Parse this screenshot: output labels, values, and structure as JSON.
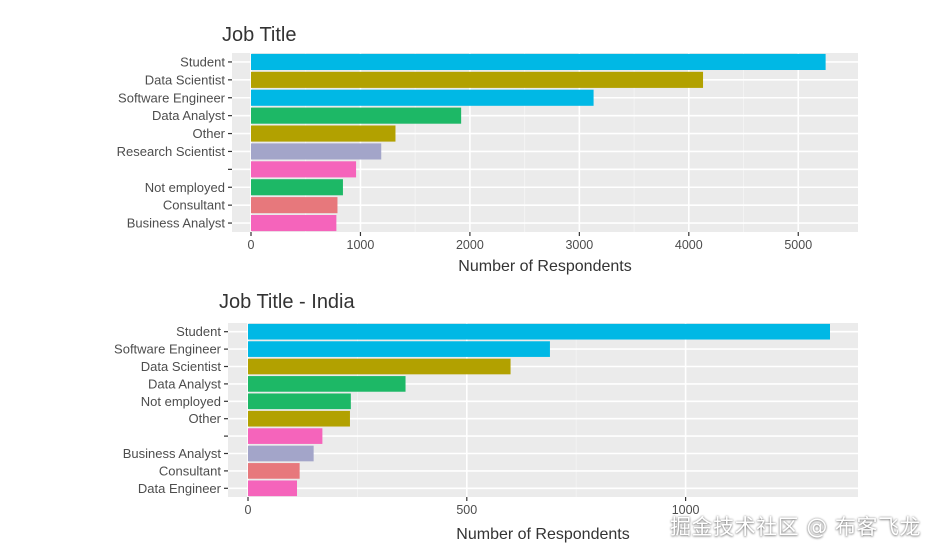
{
  "chart_data": [
    {
      "type": "bar",
      "orientation": "horizontal",
      "title": "Job Title",
      "xlabel": "Number of Respondents",
      "ylabel": "",
      "xlim": [
        0,
        5500
      ],
      "xticks": [
        0,
        1000,
        2000,
        3000,
        4000,
        5000
      ],
      "xtick_labels": [
        "0",
        "1000",
        "2000",
        "3000",
        "4000",
        "5000"
      ],
      "grid": true,
      "categories": [
        "Student",
        "Data Scientist",
        "Software Engineer",
        "Data Analyst",
        "Other",
        "Research Scientist",
        "",
        "Not employed",
        "Consultant",
        "Business Analyst"
      ],
      "values": [
        5250,
        4130,
        3130,
        1920,
        1320,
        1190,
        960,
        840,
        790,
        780
      ],
      "colors": [
        "#00B8E5",
        "#B2A100",
        "#00B8E5",
        "#1DB866",
        "#B2A100",
        "#A3A5C9",
        "#F564BB",
        "#1DB866",
        "#E7787C",
        "#F564BB"
      ]
    },
    {
      "type": "bar",
      "orientation": "horizontal",
      "title": "Job Title - India",
      "xlabel": "Number of Respondents",
      "ylabel": "",
      "xlim": [
        0,
        1400
      ],
      "xticks": [
        0,
        500,
        1000
      ],
      "xtick_labels": [
        "0",
        "500",
        "1000"
      ],
      "grid": true,
      "categories": [
        "Student",
        "Software Engineer",
        "Data Scientist",
        "Data Analyst",
        "Not employed",
        "Other",
        "",
        "Business Analyst",
        "Consultant",
        "Data Engineer"
      ],
      "values": [
        1330,
        690,
        600,
        360,
        235,
        233,
        170,
        150,
        118,
        112
      ],
      "colors": [
        "#00B8E5",
        "#00B8E5",
        "#B2A100",
        "#1DB866",
        "#1DB866",
        "#B2A100",
        "#F564BB",
        "#A3A5C9",
        "#E7787C",
        "#F564BB"
      ]
    }
  ],
  "watermark": "掘金技术社区 @ 布客飞龙"
}
